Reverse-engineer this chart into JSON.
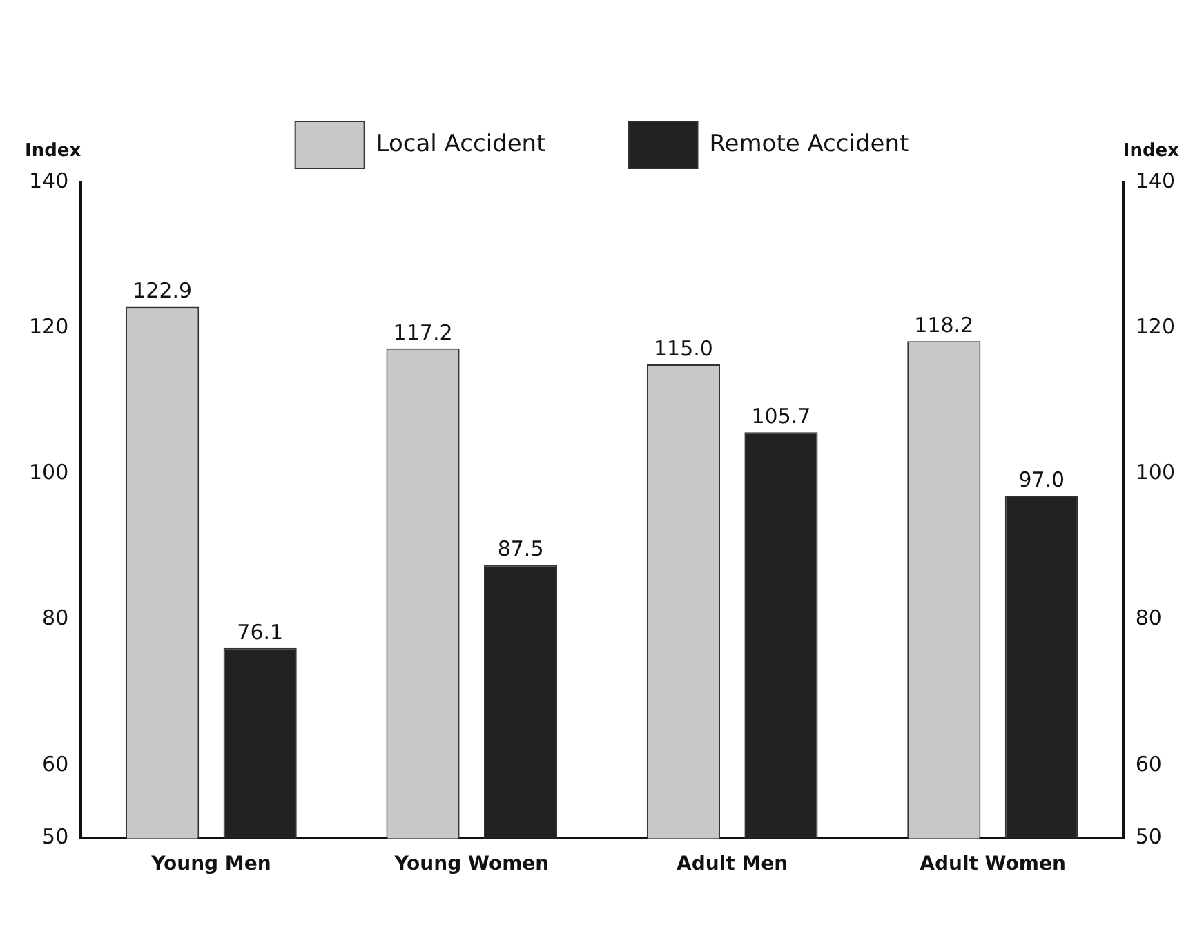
{
  "chart_data": {
    "type": "bar",
    "ylabel": "Index",
    "y2label": "Index",
    "categories": [
      "Young Men",
      "Young Women",
      "Adult Men",
      "Adult Women"
    ],
    "series": [
      {
        "name": "Local Accident",
        "color": "#c8c8c8",
        "values": [
          122.9,
          117.2,
          115.0,
          118.2
        ],
        "value_labels": [
          "122.9",
          "117.2",
          "115.0",
          "118.2"
        ]
      },
      {
        "name": "Remote Accident",
        "color": "#222222",
        "values": [
          76.1,
          87.5,
          105.7,
          97.0
        ],
        "value_labels": [
          "76.1",
          "87.5",
          "105.7",
          "97.0"
        ]
      }
    ],
    "ylim": [
      50,
      140
    ],
    "yticks": [
      50,
      60,
      80,
      100,
      120,
      140
    ],
    "y2lim": [
      50,
      140
    ],
    "y2ticks": [
      50,
      60,
      80,
      100,
      120,
      140
    ],
    "grid": false,
    "legend": "top"
  }
}
